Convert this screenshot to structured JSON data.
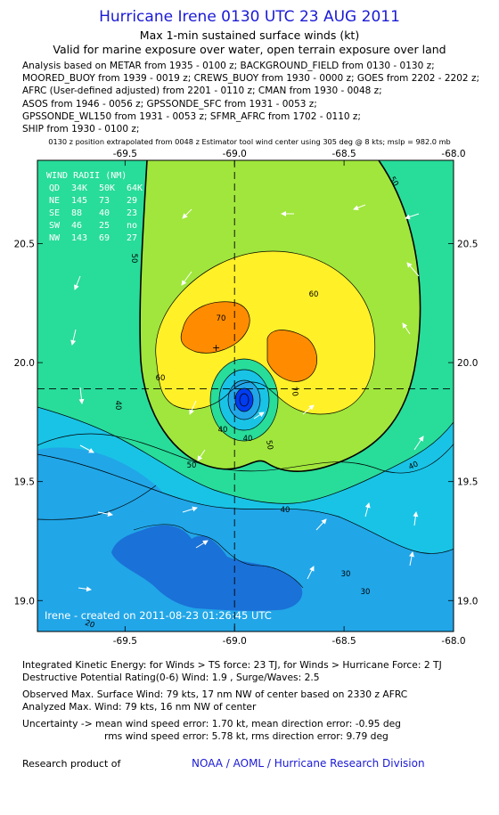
{
  "header": {
    "title": "Hurricane Irene 0130 UTC 23 AUG 2011",
    "subtitle1": "Max 1-min sustained surface winds (kt)",
    "subtitle2": "Valid for marine exposure over water, open terrain exposure over land"
  },
  "analysis_lines": [
    "Analysis based on METAR from 1935 - 0100 z; BACKGROUND_FIELD from 0130 - 0130 z;",
    "MOORED_BUOY from 1939 - 0019 z; CREWS_BUOY from 1930 - 0000 z; GOES from 2202 - 2202 z;",
    "AFRC (User-defined adjusted) from 2201 - 0110 z; CMAN from 1930 - 0048 z;",
    "ASOS from 1946 - 0056 z; GPSSONDE_SFC from 1931 - 0053 z;",
    "GPSSONDE_WL150 from 1931 - 0053 z; SFMR_AFRC from 1702 - 0110 z;",
    "SHIP from 1930 - 0100 z;"
  ],
  "position_note": "0130 z position extrapolated from 0048 z Estimator tool wind center using 305 deg @ 8 kts; mslp = 982.0 mb",
  "map": {
    "lon_ticks": [
      "-69.5",
      "-69.0",
      "-68.5",
      "-68.0"
    ],
    "lat_ticks": [
      "20.5",
      "20.0",
      "19.5",
      "19.0"
    ],
    "lon_range": [
      -69.9,
      -68.0
    ],
    "lat_range": [
      18.87,
      20.85
    ],
    "center": {
      "lon": -69.0,
      "lat": 19.89
    },
    "wind_radii": {
      "title": "WIND RADII (NM)",
      "header": [
        "QD",
        "34K",
        "50K",
        "64K"
      ],
      "rows": [
        [
          "NE",
          "145",
          "73",
          "29"
        ],
        [
          "SE",
          "88",
          "40",
          "23"
        ],
        [
          "SW",
          "46",
          "25",
          "no"
        ],
        [
          "NW",
          "143",
          "69",
          "27"
        ]
      ]
    },
    "contour_labels": [
      "30",
      "30",
      "40",
      "40",
      "40",
      "40",
      "40",
      "50",
      "50",
      "50",
      "50",
      "60",
      "60",
      "70",
      "70",
      "20"
    ],
    "created_label": "Irene - created on 2011-08-23 01:26:45 UTC",
    "colors": {
      "ring40": "#19c3e6",
      "ring50": "#28dc9a",
      "ring60": "#a0e63c",
      "ring70": "#fff028",
      "ring80": "#ff8c00",
      "low": "#1d5fe6",
      "mid": "#21a6e8",
      "land": "#1646c8",
      "eye": "#003cf0"
    }
  },
  "footer_lines": [
    "Integrated Kinetic Energy:  for Winds > TS force: 23 TJ,  for Winds > Hurricane Force: 2 TJ",
    "Destructive Potential Rating(0-6)   Wind: 1.9 , Surge/Waves: 2.5",
    "Observed Max. Surface Wind: 79 kts, 17 nm NW of center based on 2330 z AFRC",
    "Analyzed Max. Wind: 79 kts, 16 nm NW of center",
    "Uncertainty -> mean wind speed error: 1.70 kt,   mean direction error:  -0.95 deg",
    "rms wind speed error: 5.78 kt,   rms direction error: 9.79 deg"
  ],
  "credit": "Research product of",
  "org": "NOAA / AOML / Hurricane Research Division"
}
